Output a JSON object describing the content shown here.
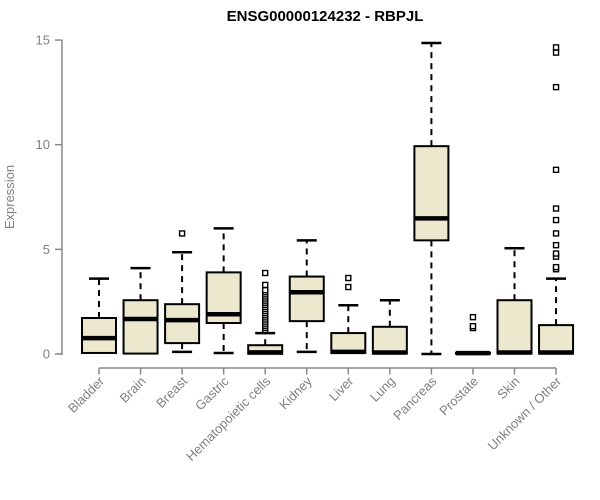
{
  "chart_data": {
    "type": "boxplot",
    "title": "ENSG00000124232 - RBPJL",
    "ylabel": "Expression",
    "xlabel": "",
    "ylim": [
      0,
      15
    ],
    "yticks": [
      0,
      5,
      10,
      15
    ],
    "grid": false,
    "legend": "none",
    "colors": {
      "box_fill": "#ece8cd",
      "box_stroke": "#000000",
      "median": "#000000",
      "whisker": "#000000",
      "axis": "#888888",
      "tick_label": "#808080",
      "title": "#000000",
      "background": "#ffffff"
    },
    "categories": [
      "Bladder",
      "Brain",
      "Breast",
      "Gastric",
      "Hematopoietic cells",
      "Kidney",
      "Liver",
      "Lung",
      "Pancreas",
      "Prostate",
      "Skin",
      "Unknown / Other"
    ],
    "boxes": [
      {
        "category": "Bladder",
        "lo": 0.02,
        "q1": 0.05,
        "med": 0.76,
        "q3": 1.72,
        "hi": 3.6,
        "outliers": []
      },
      {
        "category": "Brain",
        "lo": 0.02,
        "q1": 0.02,
        "med": 1.67,
        "q3": 2.57,
        "hi": 4.1,
        "outliers": []
      },
      {
        "category": "Breast",
        "lo": 0.1,
        "q1": 0.52,
        "med": 1.62,
        "q3": 2.38,
        "hi": 4.86,
        "outliers": [
          5.76
        ]
      },
      {
        "category": "Gastric",
        "lo": 0.05,
        "q1": 1.48,
        "med": 1.9,
        "q3": 3.9,
        "hi": 6.0,
        "outliers": []
      },
      {
        "category": "Hematopoietic cells",
        "lo": 0.01,
        "q1": 0.01,
        "med": 0.08,
        "q3": 0.42,
        "hi": 1.0,
        "outliers": [
          1.15,
          1.25,
          1.35,
          1.45,
          1.55,
          1.65,
          1.75,
          1.85,
          1.95,
          2.05,
          2.15,
          2.25,
          2.35,
          2.45,
          2.55,
          2.65,
          2.75,
          2.85,
          2.95,
          3.05,
          3.3,
          3.87
        ]
      },
      {
        "category": "Kidney",
        "lo": 0.1,
        "q1": 1.57,
        "med": 2.95,
        "q3": 3.7,
        "hi": 5.43,
        "outliers": []
      },
      {
        "category": "Liver",
        "lo": 0.05,
        "q1": 0.05,
        "med": 0.1,
        "q3": 1.0,
        "hi": 2.33,
        "outliers": [
          3.2,
          3.63
        ]
      },
      {
        "category": "Lung",
        "lo": 0.02,
        "q1": 0.02,
        "med": 0.07,
        "q3": 1.3,
        "hi": 2.57,
        "outliers": []
      },
      {
        "category": "Pancreas",
        "lo": 0.0,
        "q1": 5.43,
        "med": 6.48,
        "q3": 9.93,
        "hi": 14.86,
        "outliers": []
      },
      {
        "category": "Prostate",
        "lo": 0.02,
        "q1": 0.02,
        "med": 0.04,
        "q3": 0.06,
        "hi": 0.06,
        "outliers": [
          1.24,
          1.33,
          1.76
        ]
      },
      {
        "category": "Skin",
        "lo": 0.02,
        "q1": 0.02,
        "med": 0.07,
        "q3": 2.57,
        "hi": 5.05,
        "outliers": []
      },
      {
        "category": "Unknown / Other",
        "lo": 0.02,
        "q1": 0.02,
        "med": 0.07,
        "q3": 1.38,
        "hi": 3.6,
        "outliers": [
          4.05,
          4.15,
          4.65,
          4.8,
          5.2,
          5.76,
          6.4,
          6.95,
          8.8,
          12.75,
          14.4,
          14.65
        ]
      }
    ]
  }
}
